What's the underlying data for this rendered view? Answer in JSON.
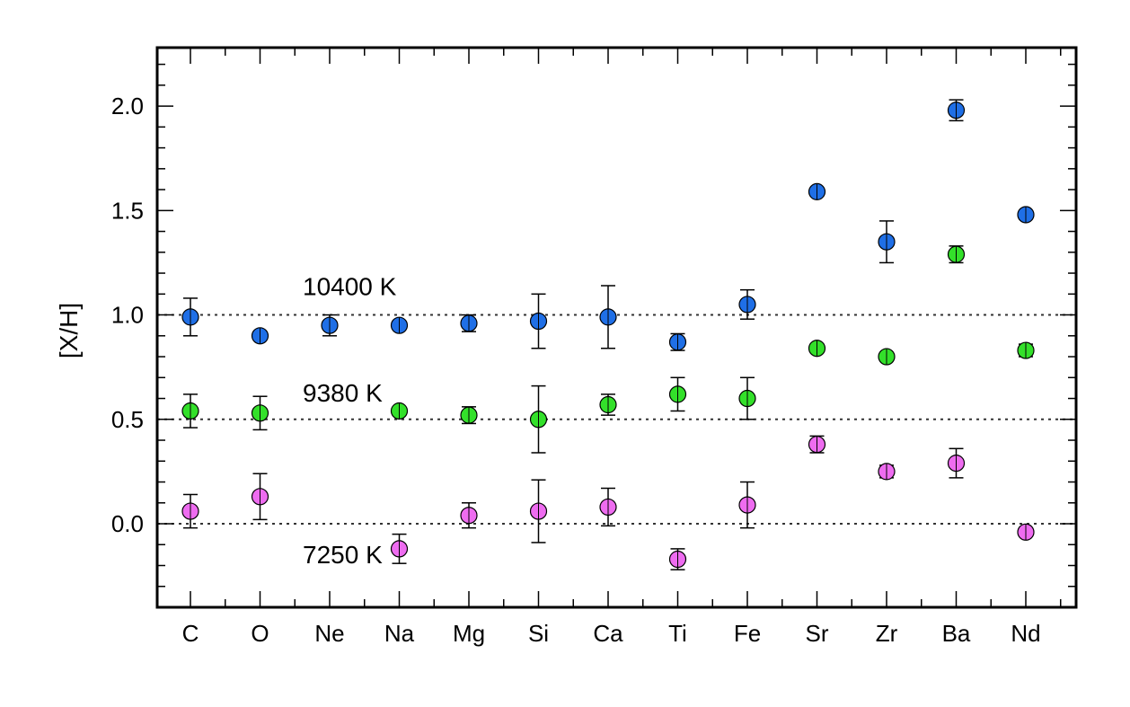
{
  "chart_data": {
    "type": "scatter",
    "ylabel": "[X/H]",
    "xlabel": "",
    "categories": [
      "C",
      "O",
      "Ne",
      "Na",
      "Mg",
      "Si",
      "Ca",
      "Ti",
      "Fe",
      "Sr",
      "Zr",
      "Ba",
      "Nd"
    ],
    "ylim": [
      -0.4,
      2.28
    ],
    "yticks": [
      "0.0",
      "0.5",
      "1.0",
      "1.5",
      "2.0"
    ],
    "reference_lines": [
      0.0,
      0.5,
      1.0
    ],
    "series": [
      {
        "name": "10400 K",
        "color": "#1f6fe6",
        "points": [
          {
            "x": "C",
            "y": 0.99,
            "err": 0.09
          },
          {
            "x": "O",
            "y": 0.9,
            "err": 0.02
          },
          {
            "x": "Ne",
            "y": 0.95,
            "err": 0.05
          },
          {
            "x": "Na",
            "y": 0.95,
            "err": 0.02
          },
          {
            "x": "Mg",
            "y": 0.96,
            "err": 0.04
          },
          {
            "x": "Si",
            "y": 0.97,
            "err": 0.13
          },
          {
            "x": "Ca",
            "y": 0.99,
            "err": 0.15
          },
          {
            "x": "Ti",
            "y": 0.87,
            "err": 0.04
          },
          {
            "x": "Fe",
            "y": 1.05,
            "err": 0.07
          },
          {
            "x": "Sr",
            "y": 1.59,
            "err": 0.02
          },
          {
            "x": "Zr",
            "y": 1.35,
            "err": 0.1
          },
          {
            "x": "Ba",
            "y": 1.98,
            "err": 0.05
          },
          {
            "x": "Nd",
            "y": 1.48,
            "err": 0.02
          }
        ]
      },
      {
        "name": "9380 K",
        "color": "#33e02a",
        "points": [
          {
            "x": "C",
            "y": 0.54,
            "err": 0.08
          },
          {
            "x": "O",
            "y": 0.53,
            "err": 0.08
          },
          {
            "x": "Na",
            "y": 0.54,
            "err": 0.02
          },
          {
            "x": "Mg",
            "y": 0.52,
            "err": 0.04
          },
          {
            "x": "Si",
            "y": 0.5,
            "err": 0.16
          },
          {
            "x": "Ca",
            "y": 0.57,
            "err": 0.05
          },
          {
            "x": "Ti",
            "y": 0.62,
            "err": 0.08
          },
          {
            "x": "Fe",
            "y": 0.6,
            "err": 0.1
          },
          {
            "x": "Sr",
            "y": 0.84,
            "err": 0.02
          },
          {
            "x": "Zr",
            "y": 0.8,
            "err": 0.02
          },
          {
            "x": "Ba",
            "y": 1.29,
            "err": 0.04
          },
          {
            "x": "Nd",
            "y": 0.83,
            "err": 0.03
          }
        ]
      },
      {
        "name": "7250 K",
        "color": "#ee6cf0",
        "points": [
          {
            "x": "C",
            "y": 0.06,
            "err": 0.08
          },
          {
            "x": "O",
            "y": 0.13,
            "err": 0.11
          },
          {
            "x": "Na",
            "y": -0.12,
            "err": 0.07
          },
          {
            "x": "Mg",
            "y": 0.04,
            "err": 0.06
          },
          {
            "x": "Si",
            "y": 0.06,
            "err": 0.15
          },
          {
            "x": "Ca",
            "y": 0.08,
            "err": 0.09
          },
          {
            "x": "Ti",
            "y": -0.17,
            "err": 0.05
          },
          {
            "x": "Fe",
            "y": 0.09,
            "err": 0.11
          },
          {
            "x": "Sr",
            "y": 0.38,
            "err": 0.04
          },
          {
            "x": "Zr",
            "y": 0.25,
            "err": 0.03
          },
          {
            "x": "Ba",
            "y": 0.29,
            "err": 0.07
          },
          {
            "x": "Nd",
            "y": -0.04,
            "err": 0.02
          }
        ]
      }
    ]
  }
}
